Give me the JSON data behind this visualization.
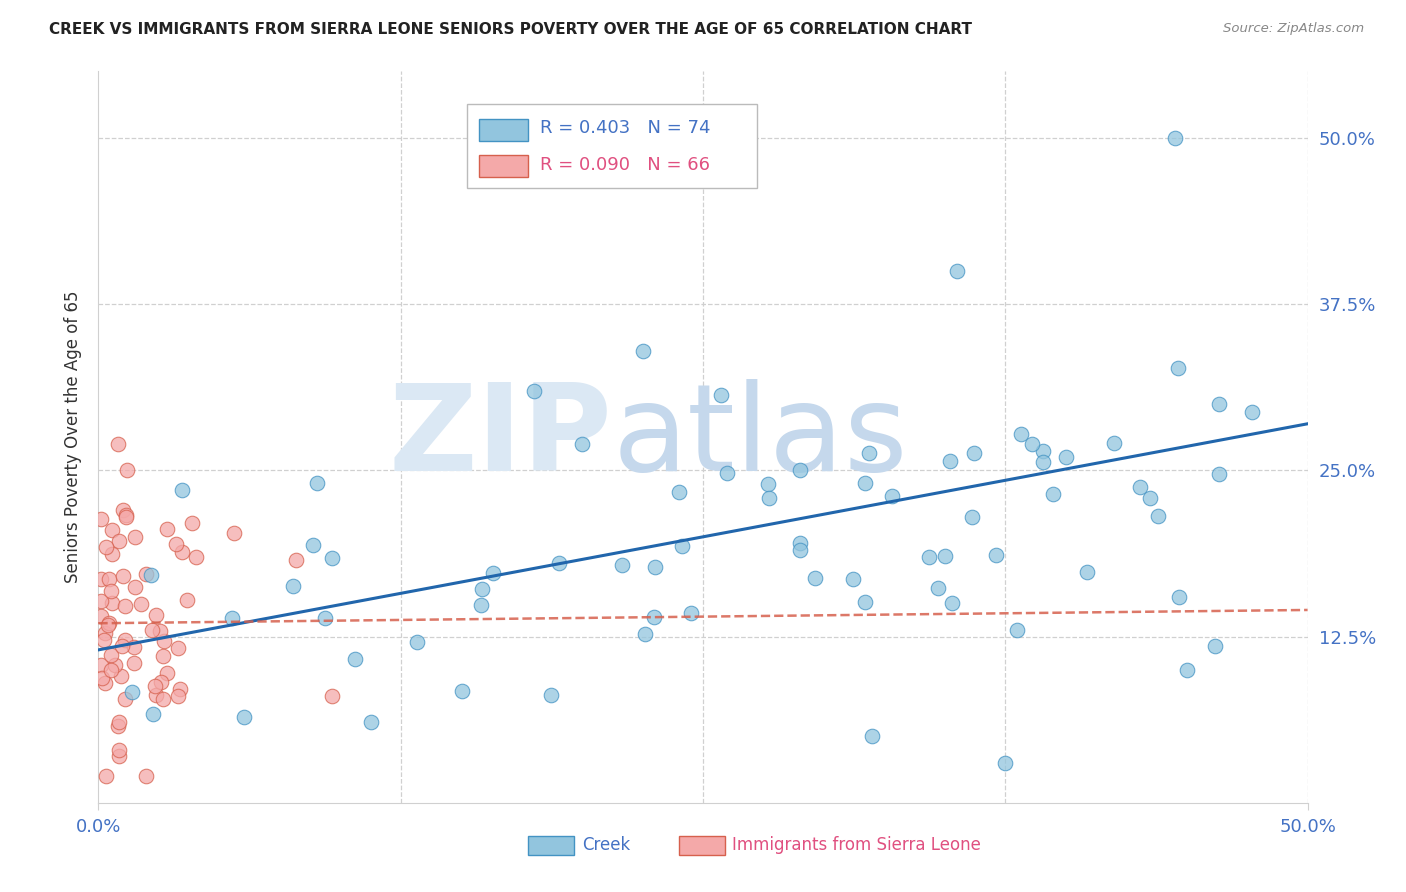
{
  "title": "CREEK VS IMMIGRANTS FROM SIERRA LEONE SENIORS POVERTY OVER THE AGE OF 65 CORRELATION CHART",
  "source": "Source: ZipAtlas.com",
  "ylabel": "Seniors Poverty Over the Age of 65",
  "ytick_labels": [
    "12.5%",
    "25.0%",
    "37.5%",
    "50.0%"
  ],
  "ytick_values": [
    0.125,
    0.25,
    0.375,
    0.5
  ],
  "xmin": 0.0,
  "xmax": 0.5,
  "ymin": 0.0,
  "ymax": 0.55,
  "creek_color": "#92c5de",
  "creek_edge_color": "#4393c3",
  "sierra_leone_color": "#f4a9a9",
  "sierra_leone_edge_color": "#d6604d",
  "creek_line_color": "#2166ac",
  "sierra_line_color": "#f4a9a9",
  "creek_R": 0.403,
  "creek_N": 74,
  "sierra_leone_R": 0.09,
  "sierra_leone_N": 66,
  "legend_label_creek": "Creek",
  "legend_label_sierra": "Immigrants from Sierra Leone",
  "background_color": "#ffffff",
  "title_color": "#222222",
  "axis_tick_color": "#4472c4",
  "grid_color": "#d0d0d0",
  "watermark_zip_color": "#dde8f5",
  "watermark_atlas_color": "#c8d8e8"
}
